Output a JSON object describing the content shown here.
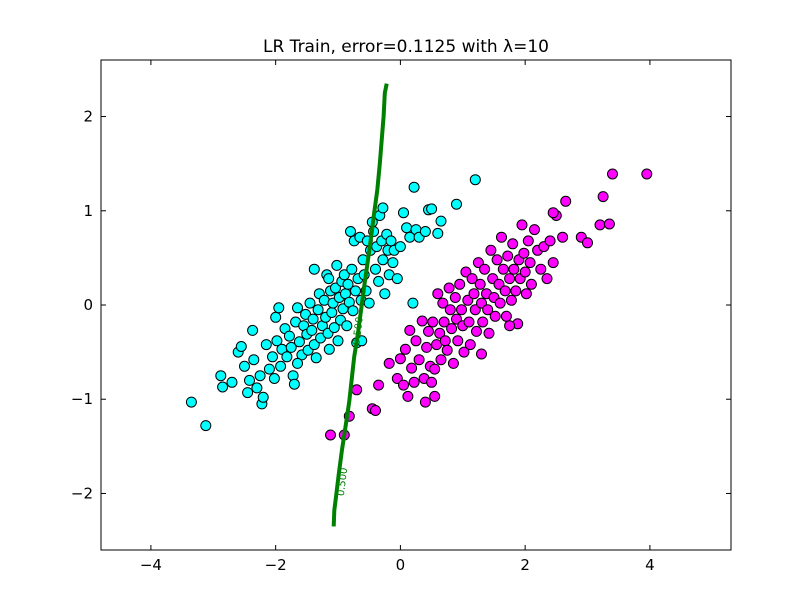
{
  "chart_data": {
    "type": "scatter",
    "title": "LR Train, error=0.1125 with λ=10",
    "xlabel": "",
    "ylabel": "",
    "xlim": [
      -4.8,
      5.3
    ],
    "ylim": [
      -2.6,
      2.6
    ],
    "xticks": [
      -4,
      -2,
      0,
      2,
      4
    ],
    "yticks": [
      -2,
      -1,
      0,
      1,
      2
    ],
    "xtick_labels": [
      "−4",
      "−2",
      "0",
      "2",
      "4"
    ],
    "ytick_labels": [
      "−2",
      "−1",
      "0",
      "1",
      "2"
    ],
    "grid": false,
    "series": [
      {
        "color": "#00ffff",
        "points": [
          [
            -3.35,
            -1.03
          ],
          [
            -3.12,
            -1.28
          ],
          [
            -2.88,
            -0.75
          ],
          [
            -2.85,
            -0.87
          ],
          [
            -2.7,
            -0.82
          ],
          [
            -2.6,
            -0.5
          ],
          [
            -2.55,
            -0.44
          ],
          [
            -2.5,
            -0.65
          ],
          [
            -2.45,
            -0.93
          ],
          [
            -2.42,
            -0.8
          ],
          [
            -2.37,
            -0.27
          ],
          [
            -2.35,
            -0.58
          ],
          [
            -2.3,
            -0.88
          ],
          [
            -2.25,
            -0.75
          ],
          [
            -2.22,
            -1.05
          ],
          [
            -2.2,
            -0.98
          ],
          [
            -2.15,
            -0.42
          ],
          [
            -2.1,
            -0.68
          ],
          [
            -2.05,
            -0.55
          ],
          [
            -2.02,
            -0.78
          ],
          [
            -2.0,
            -0.13
          ],
          [
            -1.98,
            -0.38
          ],
          [
            -1.95,
            -0.03
          ],
          [
            -1.92,
            -0.65
          ],
          [
            -1.9,
            -0.47
          ],
          [
            -1.85,
            -0.25
          ],
          [
            -1.82,
            -0.55
          ],
          [
            -1.78,
            -0.33
          ],
          [
            -1.75,
            -0.45
          ],
          [
            -1.72,
            -0.75
          ],
          [
            -1.7,
            -0.84
          ],
          [
            -1.68,
            -0.18
          ],
          [
            -1.65,
            -0.03
          ],
          [
            -1.62,
            -0.39
          ],
          [
            -1.58,
            -0.53
          ],
          [
            -1.55,
            -0.22
          ],
          [
            -1.52,
            -0.1
          ],
          [
            -1.5,
            -0.31
          ],
          [
            -1.48,
            -0.48
          ],
          [
            -1.45,
            0.02
          ],
          [
            -1.42,
            -0.27
          ],
          [
            -1.4,
            -0.15
          ],
          [
            -1.38,
            -0.42
          ],
          [
            -1.35,
            -0.56
          ],
          [
            -1.32,
            -0.05
          ],
          [
            -1.3,
            0.12
          ],
          [
            -1.28,
            -0.35
          ],
          [
            -1.25,
            -0.22
          ],
          [
            -1.22,
            0.05
          ],
          [
            -1.2,
            -0.13
          ],
          [
            -1.18,
            0.32
          ],
          [
            -1.16,
            -0.3
          ],
          [
            -1.14,
            -0.47
          ],
          [
            -1.12,
            0.15
          ],
          [
            -1.1,
            -0.08
          ],
          [
            -1.08,
            0.02
          ],
          [
            -1.06,
            -0.24
          ],
          [
            -1.04,
            0.18
          ],
          [
            -1.02,
            0.42
          ],
          [
            -1.0,
            -0.38
          ],
          [
            -0.98,
            0.08
          ],
          [
            -0.96,
            -0.16
          ],
          [
            -0.94,
            0.25
          ],
          [
            -0.92,
            -0.04
          ],
          [
            -0.9,
            0.32
          ],
          [
            -0.88,
            0.12
          ],
          [
            -0.86,
            -0.22
          ],
          [
            -0.84,
            0.22
          ],
          [
            -0.82,
            0.03
          ],
          [
            -0.8,
            0.78
          ],
          [
            -0.78,
            0.38
          ],
          [
            -0.76,
            -0.06
          ],
          [
            -0.74,
            0.68
          ],
          [
            -0.72,
            0.15
          ],
          [
            -0.7,
            -0.4
          ],
          [
            -0.68,
            0.28
          ],
          [
            -0.65,
            0.72
          ],
          [
            -0.63,
            0.05
          ],
          [
            -0.6,
            0.48
          ],
          [
            -0.58,
            0.32
          ],
          [
            -0.55,
            0.15
          ],
          [
            -0.53,
            0.68
          ],
          [
            -0.5,
            0.02
          ],
          [
            -0.48,
            0.58
          ],
          [
            -0.45,
            0.88
          ],
          [
            -0.43,
            0.78
          ],
          [
            -0.4,
            0.38
          ],
          [
            -0.38,
            0.62
          ],
          [
            -0.35,
            0.25
          ],
          [
            -0.33,
            0.95
          ],
          [
            -0.3,
            0.68
          ],
          [
            -0.28,
            0.48
          ],
          [
            -0.25,
            0.12
          ],
          [
            -0.22,
            0.75
          ],
          [
            -0.2,
            0.58
          ],
          [
            -0.18,
            0.32
          ],
          [
            -0.15,
            0.68
          ],
          [
            -0.12,
            0.45
          ],
          [
            -0.1,
            0.58
          ],
          [
            -0.05,
            0.28
          ],
          [
            0.0,
            0.62
          ],
          [
            0.05,
            0.98
          ],
          [
            0.1,
            0.82
          ],
          [
            0.15,
            0.72
          ],
          [
            0.2,
            0.02
          ],
          [
            0.22,
            1.25
          ],
          [
            0.25,
            0.8
          ],
          [
            0.3,
            0.72
          ],
          [
            0.4,
            0.78
          ],
          [
            0.45,
            1.01
          ],
          [
            0.5,
            1.02
          ],
          [
            0.6,
            0.76
          ],
          [
            0.65,
            0.89
          ],
          [
            0.9,
            1.07
          ],
          [
            1.2,
            1.33
          ],
          [
            -0.28,
            1.03
          ],
          [
            -0.62,
            -0.38
          ],
          [
            -1.65,
            -0.62
          ],
          [
            -1.38,
            0.38
          ],
          [
            -1.15,
            0.28
          ]
        ]
      },
      {
        "color": "#ff00ff",
        "points": [
          [
            -1.12,
            -1.38
          ],
          [
            -0.9,
            -1.38
          ],
          [
            -0.82,
            -1.18
          ],
          [
            -0.7,
            -0.9
          ],
          [
            -0.45,
            -1.1
          ],
          [
            -0.4,
            -1.12
          ],
          [
            -0.35,
            -0.85
          ],
          [
            -0.18,
            -0.62
          ],
          [
            -0.05,
            -0.78
          ],
          [
            0.0,
            -0.57
          ],
          [
            0.05,
            -0.85
          ],
          [
            0.08,
            -0.47
          ],
          [
            0.12,
            -0.97
          ],
          [
            0.15,
            -0.27
          ],
          [
            0.18,
            -0.67
          ],
          [
            0.22,
            -0.82
          ],
          [
            0.25,
            -0.38
          ],
          [
            0.3,
            -0.58
          ],
          [
            0.35,
            -0.17
          ],
          [
            0.38,
            -0.78
          ],
          [
            0.4,
            -1.03
          ],
          [
            0.42,
            -0.45
          ],
          [
            0.45,
            -0.28
          ],
          [
            0.48,
            -0.65
          ],
          [
            0.5,
            -0.82
          ],
          [
            0.52,
            -0.18
          ],
          [
            0.55,
            -0.97
          ],
          [
            0.58,
            -0.42
          ],
          [
            0.6,
            0.12
          ],
          [
            0.63,
            -0.3
          ],
          [
            0.65,
            -0.58
          ],
          [
            0.68,
            0.02
          ],
          [
            0.7,
            -0.18
          ],
          [
            0.72,
            -0.38
          ],
          [
            0.75,
            -0.48
          ],
          [
            0.78,
            0.18
          ],
          [
            0.8,
            -0.05
          ],
          [
            0.82,
            -0.25
          ],
          [
            0.85,
            -0.62
          ],
          [
            0.88,
            0.08
          ],
          [
            0.9,
            -0.15
          ],
          [
            0.92,
            -0.38
          ],
          [
            0.95,
            0.22
          ],
          [
            0.98,
            -0.05
          ],
          [
            1.0,
            -0.22
          ],
          [
            1.02,
            -0.5
          ],
          [
            1.05,
            0.35
          ],
          [
            1.08,
            0.05
          ],
          [
            1.1,
            -0.18
          ],
          [
            1.12,
            -0.42
          ],
          [
            1.15,
            0.28
          ],
          [
            1.18,
            0.12
          ],
          [
            1.2,
            -0.05
          ],
          [
            1.22,
            -0.28
          ],
          [
            1.25,
            0.45
          ],
          [
            1.28,
            0.22
          ],
          [
            1.3,
            0.02
          ],
          [
            1.32,
            -0.18
          ],
          [
            1.35,
            0.38
          ],
          [
            1.38,
            0.12
          ],
          [
            1.4,
            -0.05
          ],
          [
            1.42,
            -0.3
          ],
          [
            1.45,
            0.58
          ],
          [
            1.48,
            0.28
          ],
          [
            1.5,
            0.08
          ],
          [
            1.52,
            -0.12
          ],
          [
            1.55,
            0.48
          ],
          [
            1.58,
            0.22
          ],
          [
            1.6,
            0.02
          ],
          [
            1.62,
            0.72
          ],
          [
            1.65,
            0.38
          ],
          [
            1.68,
            0.15
          ],
          [
            1.7,
            -0.12
          ],
          [
            1.72,
            0.52
          ],
          [
            1.75,
            0.28
          ],
          [
            1.78,
            0.05
          ],
          [
            1.8,
            0.65
          ],
          [
            1.82,
            0.38
          ],
          [
            1.85,
            0.15
          ],
          [
            1.88,
            -0.2
          ],
          [
            1.9,
            0.48
          ],
          [
            1.92,
            0.28
          ],
          [
            1.95,
            0.85
          ],
          [
            1.98,
            0.55
          ],
          [
            2.0,
            0.35
          ],
          [
            2.02,
            0.12
          ],
          [
            2.05,
            0.68
          ],
          [
            2.08,
            0.45
          ],
          [
            2.1,
            0.22
          ],
          [
            2.15,
            0.8
          ],
          [
            2.2,
            0.58
          ],
          [
            2.25,
            0.38
          ],
          [
            2.3,
            0.62
          ],
          [
            2.35,
            0.28
          ],
          [
            2.4,
            0.68
          ],
          [
            2.45,
            0.45
          ],
          [
            2.5,
            0.95
          ],
          [
            2.6,
            0.72
          ],
          [
            2.65,
            1.1
          ],
          [
            2.9,
            0.72
          ],
          [
            3.0,
            0.66
          ],
          [
            3.2,
            0.85
          ],
          [
            3.25,
            1.15
          ],
          [
            3.35,
            0.86
          ],
          [
            3.4,
            1.39
          ],
          [
            3.95,
            1.39
          ],
          [
            1.3,
            -0.52
          ],
          [
            0.55,
            -0.68
          ],
          [
            1.75,
            -0.22
          ],
          [
            2.45,
            0.98
          ]
        ]
      }
    ],
    "decision_boundary": {
      "color": "#008000",
      "label": "0.500",
      "points": [
        [
          -1.07,
          -2.35
        ],
        [
          -1.06,
          -2.18
        ],
        [
          -1.03,
          -2.02
        ],
        [
          -0.99,
          -1.8
        ],
        [
          -0.94,
          -1.55
        ],
        [
          -0.87,
          -1.25
        ],
        [
          -0.82,
          -1.02
        ],
        [
          -0.78,
          -0.78
        ],
        [
          -0.74,
          -0.55
        ],
        [
          -0.68,
          -0.3
        ],
        [
          -0.63,
          -0.05
        ],
        [
          -0.58,
          0.2
        ],
        [
          -0.52,
          0.48
        ],
        [
          -0.47,
          0.72
        ],
        [
          -0.42,
          0.98
        ],
        [
          -0.37,
          1.22
        ],
        [
          -0.33,
          1.5
        ],
        [
          -0.3,
          1.75
        ],
        [
          -0.27,
          2.0
        ],
        [
          -0.25,
          2.25
        ],
        [
          -0.22,
          2.35
        ]
      ]
    }
  }
}
